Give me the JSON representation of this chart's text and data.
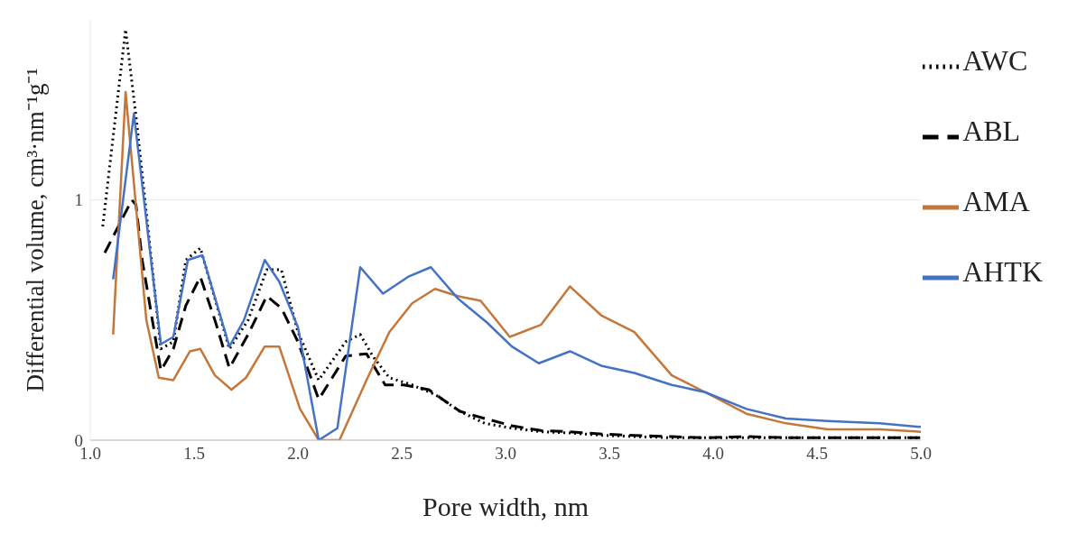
{
  "chart_data": {
    "type": "line",
    "xlabel": "Pore width, nm",
    "ylabel": "Differential volume, cm³·nm⁻¹g⁻¹",
    "xlim": [
      1,
      5
    ],
    "xticks": [
      {
        "value": 1,
        "label": "1.0"
      },
      {
        "value": 1.5,
        "label": "1.5"
      },
      {
        "value": 2,
        "label": "2.0"
      },
      {
        "value": 2.5,
        "label": "2.5"
      },
      {
        "value": 3,
        "label": "3.0"
      },
      {
        "value": 3.5,
        "label": "3.5"
      },
      {
        "value": 4,
        "label": "4.0"
      },
      {
        "value": 4.5,
        "label": "4.5"
      },
      {
        "value": 5,
        "label": "5.0"
      }
    ],
    "ylim": [
      0,
      1.75
    ],
    "yticks": [
      0,
      1
    ],
    "grid": "y",
    "legend": "top right",
    "marker": "none",
    "series": [
      {
        "name": "AWC",
        "color": "#000000",
        "line_style": "dotted",
        "x": [
          1.06,
          1.17,
          1.22,
          1.34,
          1.4,
          1.46,
          1.53,
          1.67,
          1.76,
          1.85,
          1.92,
          2.0,
          2.1,
          2.23,
          2.3,
          2.36,
          2.44,
          2.55,
          2.66,
          2.78,
          2.9,
          3.03,
          3.17,
          3.31,
          3.47,
          3.62,
          3.8,
          3.97,
          4.16,
          4.36,
          4.57,
          4.79,
          5.0
        ],
        "values": [
          0.89,
          1.71,
          1.35,
          0.38,
          0.41,
          0.75,
          0.8,
          0.38,
          0.5,
          0.71,
          0.71,
          0.45,
          0.25,
          0.41,
          0.44,
          0.35,
          0.26,
          0.23,
          0.19,
          0.12,
          0.07,
          0.05,
          0.035,
          0.03,
          0.02,
          0.015,
          0.01,
          0.01,
          0.01,
          0.01,
          0.01,
          0.01,
          0.01
        ]
      },
      {
        "name": "ABL",
        "color": "#000000",
        "line_style": "dashed",
        "x": [
          1.07,
          1.2,
          1.22,
          1.25,
          1.34,
          1.4,
          1.46,
          1.53,
          1.6,
          1.67,
          1.76,
          1.85,
          1.92,
          2.0,
          2.1,
          2.23,
          2.33,
          2.42,
          2.51,
          2.63,
          2.78,
          2.9,
          3.03,
          3.17,
          3.31,
          3.47,
          3.62,
          3.8,
          3.97,
          4.16,
          4.36,
          4.57,
          4.79,
          5.0
        ],
        "values": [
          0.78,
          1.0,
          0.98,
          0.75,
          0.29,
          0.38,
          0.56,
          0.68,
          0.5,
          0.3,
          0.44,
          0.6,
          0.55,
          0.41,
          0.17,
          0.35,
          0.36,
          0.23,
          0.23,
          0.21,
          0.12,
          0.09,
          0.06,
          0.04,
          0.035,
          0.025,
          0.02,
          0.015,
          0.01,
          0.015,
          0.01,
          0.01,
          0.01,
          0.01
        ]
      },
      {
        "name": "AMA",
        "color": "#c5773a",
        "line_style": "solid",
        "x": [
          1.11,
          1.17,
          1.27,
          1.33,
          1.4,
          1.48,
          1.53,
          1.6,
          1.68,
          1.75,
          1.84,
          1.91,
          2.01,
          2.1,
          2.2,
          2.33,
          2.44,
          2.55,
          2.66,
          2.77,
          2.88,
          3.02,
          3.17,
          3.31,
          3.46,
          3.62,
          3.8,
          3.96,
          4.16,
          4.35,
          4.55,
          4.8,
          5.0
        ],
        "values": [
          0.44,
          1.45,
          0.5,
          0.26,
          0.25,
          0.37,
          0.38,
          0.27,
          0.21,
          0.26,
          0.39,
          0.39,
          0.13,
          0.0,
          0.0,
          0.25,
          0.45,
          0.57,
          0.63,
          0.6,
          0.58,
          0.43,
          0.48,
          0.64,
          0.52,
          0.45,
          0.27,
          0.2,
          0.11,
          0.07,
          0.045,
          0.045,
          0.035
        ]
      },
      {
        "name": "AHTK",
        "color": "#4472c4",
        "line_style": "solid",
        "x": [
          1.11,
          1.21,
          1.34,
          1.4,
          1.47,
          1.54,
          1.67,
          1.74,
          1.84,
          1.91,
          2.0,
          2.1,
          2.19,
          2.3,
          2.41,
          2.53,
          2.64,
          2.77,
          2.91,
          3.03,
          3.16,
          3.31,
          3.46,
          3.62,
          3.8,
          3.96,
          4.16,
          4.35,
          4.55,
          4.8,
          5.0
        ],
        "values": [
          0.67,
          1.36,
          0.4,
          0.43,
          0.75,
          0.77,
          0.39,
          0.5,
          0.75,
          0.66,
          0.47,
          0.0,
          0.05,
          0.72,
          0.61,
          0.68,
          0.72,
          0.59,
          0.49,
          0.39,
          0.32,
          0.37,
          0.31,
          0.28,
          0.23,
          0.2,
          0.13,
          0.09,
          0.08,
          0.07,
          0.055
        ]
      }
    ]
  }
}
